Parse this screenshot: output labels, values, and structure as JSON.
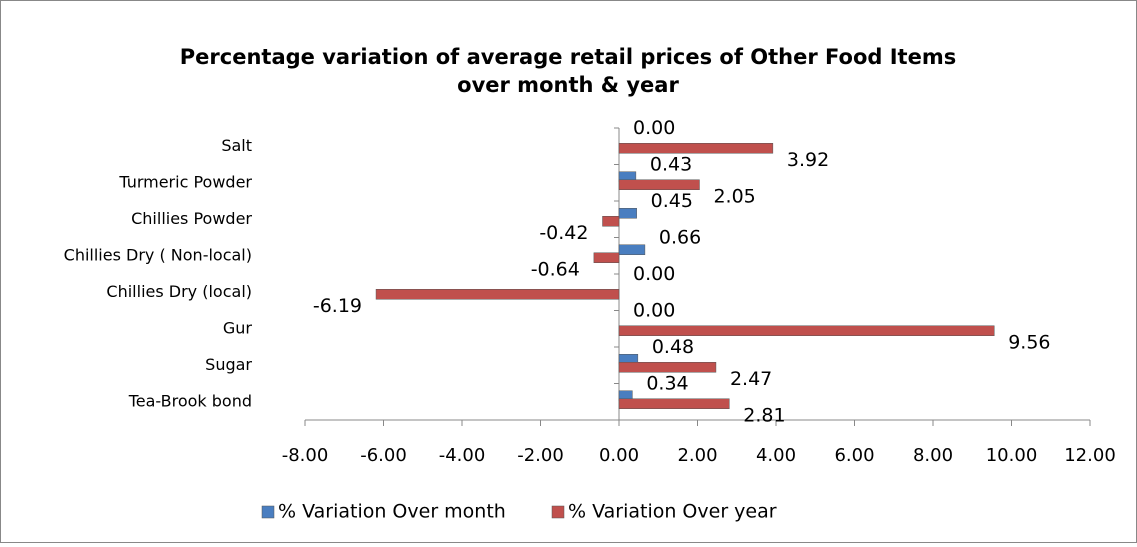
{
  "chart_data": {
    "type": "bar",
    "orientation": "horizontal",
    "title": [
      "Percentage variation  of average retail prices of Other Food Items",
      "over month & year"
    ],
    "categories": [
      "Salt",
      "Turmeric Powder",
      "Chillies Powder",
      "Chillies Dry  ( Non-local)",
      "Chillies Dry (local)",
      "Gur",
      "Sugar",
      "Tea-Brook bond"
    ],
    "series": [
      {
        "name": "% Variation Over month",
        "color": "#4a7ec0",
        "values": [
          0,
          0.43,
          0.45,
          0.66,
          0,
          0,
          0.48,
          0.34
        ],
        "value_labels": [
          "0.00",
          "0.43",
          "0.45",
          "0.66",
          "0.00",
          "0.00",
          "0.48",
          "0.34"
        ]
      },
      {
        "name": "% Variation Over year",
        "color": "#c0504d",
        "values": [
          3.92,
          2.05,
          -0.42,
          -0.64,
          -6.19,
          9.56,
          2.47,
          2.81
        ],
        "value_labels": [
          "3.92",
          "2.05",
          "-0.42",
          "-0.64",
          "-6.19",
          "9.56",
          "2.47",
          "2.81"
        ]
      }
    ],
    "xlim": [
      -8,
      12
    ],
    "xticks": [
      {
        "value": -8,
        "label": "-8.00"
      },
      {
        "value": -6,
        "label": "-6.00"
      },
      {
        "value": -4,
        "label": "-4.00"
      },
      {
        "value": -2,
        "label": "-2.00"
      },
      {
        "value": 0,
        "label": "0.00"
      },
      {
        "value": 2,
        "label": "2.00"
      },
      {
        "value": 4,
        "label": "4.00"
      },
      {
        "value": 6,
        "label": "6.00"
      },
      {
        "value": 8,
        "label": "8.00"
      },
      {
        "value": 10,
        "label": "10.00"
      },
      {
        "value": 12,
        "label": "12.00"
      }
    ],
    "legend": "bottom"
  }
}
